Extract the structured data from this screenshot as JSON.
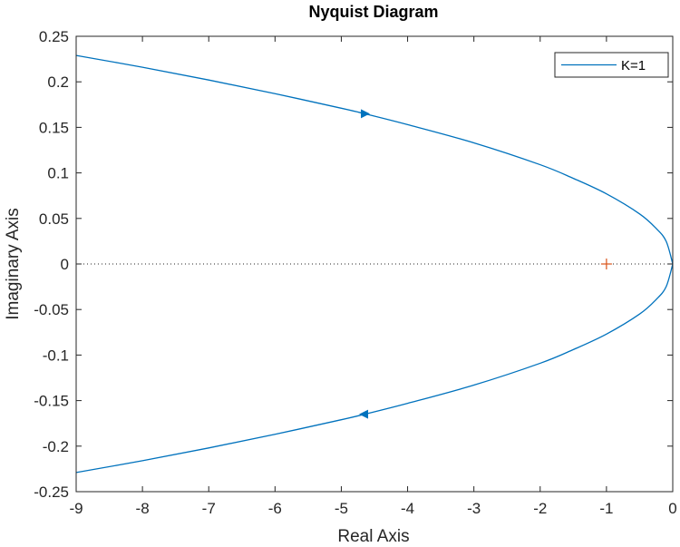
{
  "chart_data": {
    "type": "line",
    "title": "Nyquist Diagram",
    "xlabel": "Real Axis",
    "ylabel": "Imaginary Axis",
    "xlim": [
      -9,
      0
    ],
    "ylim": [
      -0.25,
      0.25
    ],
    "xticks": [
      -9,
      -8,
      -7,
      -6,
      -5,
      -4,
      -3,
      -2,
      -1,
      0
    ],
    "yticks": [
      -0.25,
      -0.2,
      -0.15,
      -0.1,
      -0.05,
      0,
      0.05,
      0.1,
      0.15,
      0.2,
      0.25
    ],
    "xtick_labels": [
      "-9",
      "-8",
      "-7",
      "-6",
      "-5",
      "-4",
      "-3",
      "-2",
      "-1",
      "0"
    ],
    "ytick_labels": [
      "-0.25",
      "-0.2",
      "-0.15",
      "-0.1",
      "-0.05",
      "0",
      "0.05",
      "0.1",
      "0.15",
      "0.2",
      "0.25"
    ],
    "grid": false,
    "legend": {
      "location": "top-right",
      "entries": [
        "K=1"
      ]
    },
    "series": [
      {
        "name": "K=1",
        "color": "#0072BD",
        "x": [
          -9,
          -8,
          -7,
          -6,
          -5,
          -4.65,
          -4,
          -3,
          -2,
          -1.5,
          -1,
          -0.5,
          -0.25,
          -0.1,
          0
        ],
        "y": [
          0.229,
          0.216,
          0.202,
          0.187,
          0.171,
          0.165,
          0.153,
          0.133,
          0.109,
          0.094,
          0.077,
          0.055,
          0.039,
          0.025,
          0
        ]
      },
      {
        "name": "",
        "color": "#0072BD",
        "x": [
          0,
          -0.1,
          -0.25,
          -0.5,
          -1,
          -1.5,
          -2,
          -3,
          -4,
          -4.65,
          -5,
          -6,
          -7,
          -8,
          -9
        ],
        "y": [
          0,
          -0.025,
          -0.039,
          -0.055,
          -0.077,
          -0.094,
          -0.109,
          -0.133,
          -0.153,
          -0.165,
          -0.171,
          -0.187,
          -0.202,
          -0.216,
          -0.229
        ]
      }
    ],
    "arrows": [
      {
        "x": -4.65,
        "y": 0.165,
        "direction": "right"
      },
      {
        "x": -4.65,
        "y": -0.165,
        "direction": "left"
      }
    ],
    "critical_point": {
      "x": -1,
      "y": 0,
      "marker": "+",
      "color": "#D95319"
    },
    "zero_line": {
      "y": 0,
      "style": "dotted"
    }
  }
}
